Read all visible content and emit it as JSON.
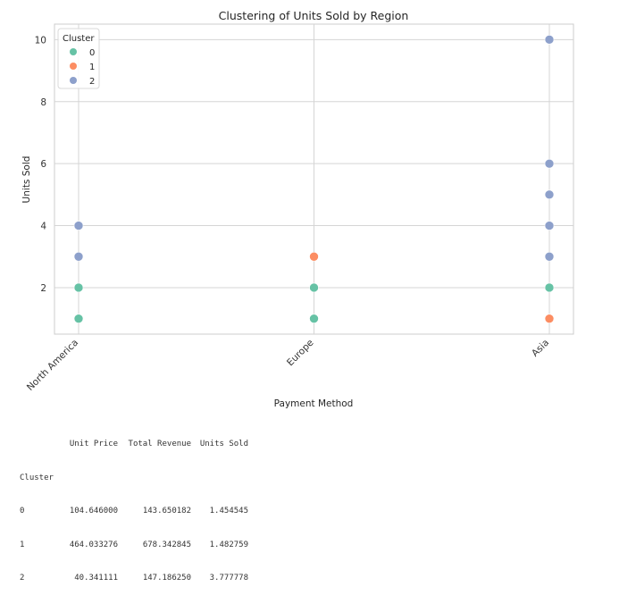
{
  "chart_data": {
    "type": "scatter",
    "title": "Clustering of Units Sold by Region",
    "xlabel": "Payment Method",
    "ylabel": "Units Sold",
    "categories": [
      "North America",
      "Europe",
      "Asia"
    ],
    "ylim": [
      0.5,
      10.5
    ],
    "yticks": [
      "2",
      "4",
      "6",
      "8",
      "10"
    ],
    "grid": true,
    "legend": {
      "title": "Cluster",
      "placement": "top-left",
      "entries": [
        {
          "label": "0",
          "color": "#66c2a5"
        },
        {
          "label": "1",
          "color": "#fc8d62"
        },
        {
          "label": "2",
          "color": "#8da0cb"
        }
      ]
    },
    "points": [
      {
        "x": "North America",
        "y": 1,
        "cluster": 0
      },
      {
        "x": "North America",
        "y": 2,
        "cluster": 0
      },
      {
        "x": "North America",
        "y": 3,
        "cluster": 2
      },
      {
        "x": "North America",
        "y": 4,
        "cluster": 2
      },
      {
        "x": "Europe",
        "y": 1,
        "cluster": 0
      },
      {
        "x": "Europe",
        "y": 2,
        "cluster": 0
      },
      {
        "x": "Europe",
        "y": 3,
        "cluster": 1
      },
      {
        "x": "Asia",
        "y": 1,
        "cluster": 1
      },
      {
        "x": "Asia",
        "y": 2,
        "cluster": 0
      },
      {
        "x": "Asia",
        "y": 3,
        "cluster": 2
      },
      {
        "x": "Asia",
        "y": 4,
        "cluster": 2
      },
      {
        "x": "Asia",
        "y": 5,
        "cluster": 2
      },
      {
        "x": "Asia",
        "y": 6,
        "cluster": 2
      },
      {
        "x": "Asia",
        "y": 10,
        "cluster": 2
      }
    ]
  },
  "summary_table": {
    "index_label": "Cluster",
    "columns": [
      "Unit Price",
      "Total Revenue",
      "Units Sold"
    ],
    "rows": [
      {
        "cluster": "0",
        "values": [
          "104.646000",
          "143.650182",
          "1.454545"
        ]
      },
      {
        "cluster": "1",
        "values": [
          "464.033276",
          "678.342845",
          "1.482759"
        ]
      },
      {
        "cluster": "2",
        "values": [
          "40.341111",
          "147.186250",
          "3.777778"
        ]
      }
    ]
  }
}
